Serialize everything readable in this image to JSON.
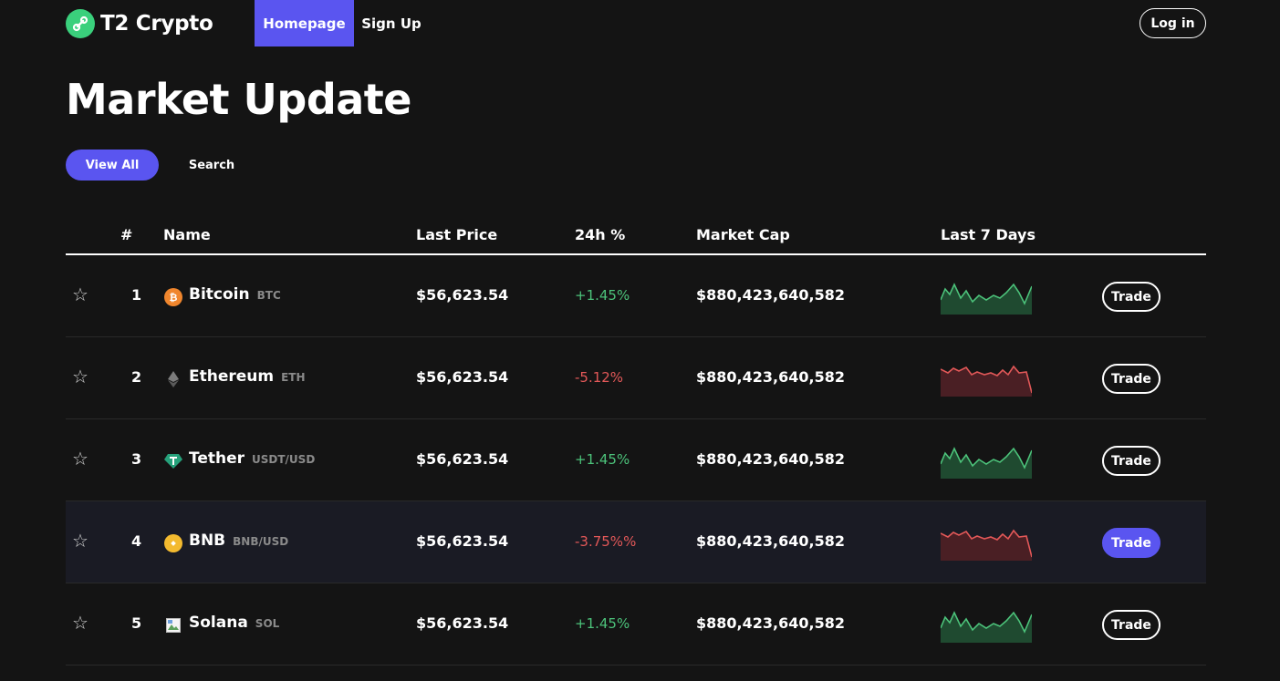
{
  "nav": {
    "brand": "T2 Crypto",
    "links": [
      {
        "label": "Homepage",
        "active": true
      },
      {
        "label": "Sign Up",
        "active": false
      }
    ],
    "login_label": "Log in"
  },
  "page_title": "Market Update",
  "filters": {
    "view_all_label": "View All",
    "search_label": "Search"
  },
  "table": {
    "headers": {
      "rank": "#",
      "name": "Name",
      "price": "Last Price",
      "change": "24h %",
      "cap": "Market Cap",
      "chart": "Last 7 Days"
    },
    "rows": [
      {
        "rank": "1",
        "name": "Bitcoin",
        "symbol": "BTC",
        "icon": "bitcoin-icon",
        "price": "$56,623.54",
        "change": "+1.45%",
        "trend": "up",
        "cap": "$880,423,640,582",
        "trade_label": "Trade"
      },
      {
        "rank": "2",
        "name": "Ethereum",
        "symbol": "ETH",
        "icon": "ethereum-icon",
        "price": "$56,623.54",
        "change": "-5.12%",
        "trend": "down",
        "cap": "$880,423,640,582",
        "trade_label": "Trade"
      },
      {
        "rank": "3",
        "name": "Tether",
        "symbol": "USDT/USD",
        "icon": "tether-icon",
        "price": "$56,623.54",
        "change": "+1.45%",
        "trend": "up",
        "cap": "$880,423,640,582",
        "trade_label": "Trade"
      },
      {
        "rank": "4",
        "name": "BNB",
        "symbol": "BNB/USD",
        "icon": "bnb-icon",
        "price": "$56,623.54",
        "change": "-3.75%%",
        "trend": "down",
        "cap": "$880,423,640,582",
        "trade_label": "Trade"
      },
      {
        "rank": "5",
        "name": "Solana",
        "symbol": "SOL",
        "icon": "solana-icon",
        "price": "$56,623.54",
        "change": "+1.45%",
        "trend": "up",
        "cap": "$880,423,640,582",
        "trade_label": "Trade"
      }
    ]
  },
  "colors": {
    "accent": "#5a55f0",
    "up": "#4cc27a",
    "down": "#e25858",
    "background": "#141414"
  }
}
